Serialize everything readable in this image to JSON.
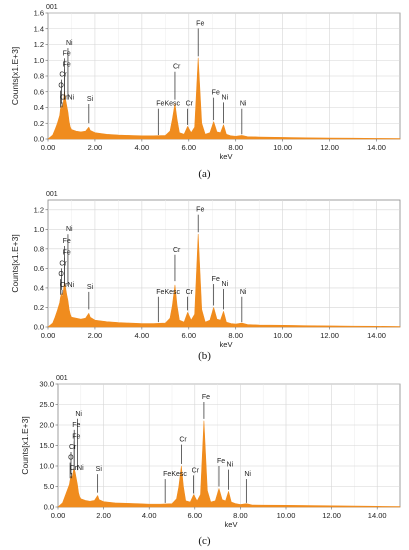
{
  "chart_data": [
    {
      "type": "area",
      "code_label": "001",
      "caption": "(a)",
      "xlabel": "keV",
      "ylabel": "Counts[x1.E+3]",
      "xlim": [
        0,
        15
      ],
      "ylim": [
        0,
        1.6
      ],
      "x_ticks": [
        0,
        2,
        4,
        6,
        8,
        10,
        12,
        14
      ],
      "x_tick_labels": [
        "0.00",
        "2.00",
        "4.00",
        "6.00",
        "8.00",
        "10.00",
        "12.00",
        "14.00"
      ],
      "y_ticks": [
        0,
        0.2,
        0.4,
        0.6,
        0.8,
        1.0,
        1.2,
        1.4,
        1.6
      ],
      "y_tick_labels": [
        "0.0",
        "0.2",
        "0.4",
        "0.6",
        "0.8",
        "1.0",
        "1.2",
        "1.4",
        "1.6"
      ],
      "grid": true,
      "color": "#f08c1e",
      "spectrum": {
        "x": [
          0.0,
          0.2,
          0.3,
          0.4,
          0.5,
          0.53,
          0.57,
          0.6,
          0.65,
          0.7,
          0.75,
          0.8,
          0.85,
          0.9,
          0.95,
          1.0,
          1.2,
          1.4,
          1.6,
          1.74,
          1.8,
          2.0,
          2.5,
          3.0,
          3.5,
          4.0,
          4.5,
          5.0,
          5.2,
          5.3,
          5.41,
          5.5,
          5.6,
          5.8,
          5.95,
          6.1,
          6.25,
          6.4,
          6.55,
          6.7,
          6.9,
          7.06,
          7.2,
          7.35,
          7.48,
          7.6,
          7.8,
          8.0,
          8.26,
          8.5,
          9.0,
          10.0,
          11.0,
          12.0,
          13.0,
          14.0,
          15.0
        ],
        "y": [
          0.0,
          0.05,
          0.12,
          0.2,
          0.3,
          0.38,
          0.42,
          0.36,
          0.45,
          0.6,
          0.5,
          0.42,
          0.34,
          0.22,
          0.15,
          0.12,
          0.1,
          0.09,
          0.1,
          0.15,
          0.11,
          0.08,
          0.06,
          0.05,
          0.045,
          0.04,
          0.04,
          0.045,
          0.1,
          0.25,
          0.45,
          0.25,
          0.08,
          0.06,
          0.16,
          0.08,
          0.15,
          1.03,
          0.2,
          0.06,
          0.08,
          0.22,
          0.09,
          0.08,
          0.18,
          0.06,
          0.04,
          0.035,
          0.045,
          0.03,
          0.025,
          0.02,
          0.015,
          0.012,
          0.01,
          0.008,
          0.006
        ]
      },
      "peak_labels": [
        {
          "text": "Ni",
          "x": 0.85,
          "y": 1.18,
          "line_x": 0.85,
          "line_top": 0.5
        },
        {
          "text": "Fe",
          "x": 0.71,
          "y": 1.05,
          "line_x": 0.71,
          "line_top": 0.5
        },
        {
          "text": "Fe",
          "x": 0.71,
          "y": 0.91,
          "line_x": 0.71,
          "line_top": 0.5
        },
        {
          "text": "Cr",
          "x": 0.57,
          "y": 0.78,
          "line_x": 0.57,
          "line_top": 0.45
        },
        {
          "text": "O",
          "x": 0.53,
          "y": 0.64,
          "line_x": 0.53,
          "line_top": 0.4
        },
        {
          "text": "CrNi",
          "x": 0.6,
          "y": 0.49,
          "line_x": 0.6,
          "line_top": 0.4
        },
        {
          "text": "Si",
          "x": 1.74,
          "y": 0.47,
          "line_x": 1.74,
          "line_top": 0.2
        },
        {
          "text": "FeKesc",
          "x": 4.7,
          "y": 0.41,
          "line_x": 4.7,
          "line_top": 0.05
        },
        {
          "text": "Cr",
          "x": 5.41,
          "y": 0.88,
          "line_x": 5.41,
          "line_top": 0.5
        },
        {
          "text": "Cr",
          "x": 5.95,
          "y": 0.41,
          "line_x": 5.95,
          "line_top": 0.18
        },
        {
          "text": "Fe",
          "x": 6.4,
          "y": 1.43,
          "line_x": 6.4,
          "line_top": 1.05
        },
        {
          "text": "Fe",
          "x": 7.06,
          "y": 0.55,
          "line_x": 7.06,
          "line_top": 0.24
        },
        {
          "text": "Ni",
          "x": 7.48,
          "y": 0.49,
          "line_x": 7.48,
          "line_top": 0.2
        },
        {
          "text": "Ni",
          "x": 8.26,
          "y": 0.41,
          "line_x": 8.26,
          "line_top": 0.06
        }
      ]
    },
    {
      "type": "area",
      "code_label": "001",
      "caption": "(b)",
      "xlabel": "keV",
      "ylabel": "Counts[x1.E+3]",
      "xlim": [
        0,
        15
      ],
      "ylim": [
        0,
        1.3
      ],
      "x_ticks": [
        0,
        2,
        4,
        6,
        8,
        10,
        12,
        14
      ],
      "x_tick_labels": [
        "0.00",
        "2.00",
        "4.00",
        "6.00",
        "8.00",
        "10.00",
        "12.00",
        "14.00"
      ],
      "y_ticks": [
        0,
        0.2,
        0.4,
        0.6,
        0.8,
        1.0,
        1.2
      ],
      "y_tick_labels": [
        "0.0",
        "0.2",
        "0.4",
        "0.6",
        "0.8",
        "1.0",
        "1.2"
      ],
      "grid": true,
      "color": "#f08c1e",
      "spectrum": {
        "x": [
          0.0,
          0.2,
          0.3,
          0.4,
          0.5,
          0.53,
          0.57,
          0.6,
          0.65,
          0.7,
          0.75,
          0.8,
          0.85,
          0.9,
          0.95,
          1.0,
          1.2,
          1.4,
          1.6,
          1.74,
          1.8,
          2.0,
          2.5,
          3.0,
          3.5,
          4.0,
          4.5,
          5.0,
          5.2,
          5.3,
          5.41,
          5.5,
          5.6,
          5.8,
          5.95,
          6.1,
          6.25,
          6.4,
          6.55,
          6.7,
          6.9,
          7.06,
          7.2,
          7.35,
          7.48,
          7.6,
          7.8,
          8.0,
          8.26,
          8.5,
          9.0,
          10.0,
          11.0,
          12.0,
          13.0,
          14.0,
          15.0
        ],
        "y": [
          0.0,
          0.04,
          0.1,
          0.17,
          0.25,
          0.3,
          0.34,
          0.3,
          0.36,
          0.46,
          0.4,
          0.33,
          0.27,
          0.18,
          0.13,
          0.1,
          0.09,
          0.08,
          0.09,
          0.14,
          0.1,
          0.07,
          0.055,
          0.045,
          0.04,
          0.035,
          0.035,
          0.04,
          0.09,
          0.22,
          0.43,
          0.22,
          0.07,
          0.05,
          0.15,
          0.07,
          0.13,
          0.95,
          0.18,
          0.05,
          0.07,
          0.2,
          0.08,
          0.07,
          0.16,
          0.05,
          0.035,
          0.03,
          0.04,
          0.025,
          0.02,
          0.018,
          0.014,
          0.011,
          0.009,
          0.007,
          0.005
        ]
      },
      "peak_labels": [
        {
          "text": "Ni",
          "x": 0.85,
          "y": 0.97,
          "line_x": 0.85,
          "line_top": 0.42
        },
        {
          "text": "Fe",
          "x": 0.71,
          "y": 0.85,
          "line_x": 0.71,
          "line_top": 0.42
        },
        {
          "text": "Fe",
          "x": 0.71,
          "y": 0.73,
          "line_x": 0.71,
          "line_top": 0.42
        },
        {
          "text": "Cr",
          "x": 0.57,
          "y": 0.62,
          "line_x": 0.57,
          "line_top": 0.38
        },
        {
          "text": "O",
          "x": 0.53,
          "y": 0.51,
          "line_x": 0.53,
          "line_top": 0.33
        },
        {
          "text": "CrNi",
          "x": 0.6,
          "y": 0.4,
          "line_x": 0.6,
          "line_top": 0.33
        },
        {
          "text": "Si",
          "x": 1.74,
          "y": 0.38,
          "line_x": 1.74,
          "line_top": 0.18
        },
        {
          "text": "FeKesc",
          "x": 4.7,
          "y": 0.33,
          "line_x": 4.7,
          "line_top": 0.05
        },
        {
          "text": "Cr",
          "x": 5.41,
          "y": 0.76,
          "line_x": 5.41,
          "line_top": 0.47
        },
        {
          "text": "Cr",
          "x": 5.95,
          "y": 0.33,
          "line_x": 5.95,
          "line_top": 0.17
        },
        {
          "text": "Fe",
          "x": 6.4,
          "y": 1.17,
          "line_x": 6.4,
          "line_top": 0.97
        },
        {
          "text": "Fe",
          "x": 7.06,
          "y": 0.46,
          "line_x": 7.06,
          "line_top": 0.22
        },
        {
          "text": "Ni",
          "x": 7.48,
          "y": 0.41,
          "line_x": 7.48,
          "line_top": 0.18
        },
        {
          "text": "Ni",
          "x": 8.26,
          "y": 0.33,
          "line_x": 8.26,
          "line_top": 0.05
        }
      ]
    },
    {
      "type": "area",
      "code_label": "001",
      "caption": "(c)",
      "xlabel": "keV",
      "ylabel": "Counts[x1.E+3]",
      "xlim": [
        0,
        15
      ],
      "ylim": [
        0,
        30
      ],
      "x_ticks": [
        0,
        2,
        4,
        6,
        8,
        10,
        12,
        14
      ],
      "x_tick_labels": [
        "0.00",
        "2.00",
        "4.00",
        "6.00",
        "8.00",
        "10.00",
        "12.00",
        "14.00"
      ],
      "y_ticks": [
        0,
        5,
        10,
        15,
        20,
        25,
        30
      ],
      "y_tick_labels": [
        "0.0",
        "5.0",
        "10.0",
        "15.0",
        "20.0",
        "25.0",
        "30.0"
      ],
      "grid": true,
      "color": "#f08c1e",
      "spectrum": {
        "x": [
          0.0,
          0.2,
          0.3,
          0.4,
          0.5,
          0.53,
          0.57,
          0.6,
          0.65,
          0.7,
          0.75,
          0.8,
          0.85,
          0.9,
          0.95,
          1.0,
          1.2,
          1.4,
          1.6,
          1.74,
          1.8,
          2.0,
          2.5,
          3.0,
          3.5,
          4.0,
          4.5,
          5.0,
          5.2,
          5.3,
          5.41,
          5.5,
          5.6,
          5.8,
          5.95,
          6.1,
          6.25,
          6.4,
          6.55,
          6.7,
          6.9,
          7.06,
          7.2,
          7.35,
          7.48,
          7.6,
          7.8,
          8.0,
          8.26,
          8.5,
          9.0,
          10.0,
          11.0,
          12.0,
          13.0,
          14.0,
          15.0
        ],
        "y": [
          0.0,
          1.0,
          2.5,
          4.0,
          5.5,
          6.5,
          7.5,
          6.5,
          8.0,
          9.5,
          8.5,
          7.0,
          5.5,
          3.5,
          2.5,
          2.0,
          1.6,
          1.4,
          1.6,
          2.8,
          1.8,
          1.3,
          1.0,
          0.9,
          0.8,
          0.7,
          0.7,
          0.8,
          2.0,
          5.0,
          10.0,
          5.0,
          1.5,
          1.2,
          3.0,
          1.5,
          3.0,
          21.0,
          4.0,
          1.2,
          1.5,
          4.5,
          1.8,
          1.5,
          3.8,
          1.2,
          0.8,
          0.6,
          0.8,
          0.5,
          0.45,
          0.4,
          0.35,
          0.28,
          0.22,
          0.16,
          0.1
        ]
      },
      "peak_labels": [
        {
          "text": "Ni",
          "x": 0.85,
          "y": 22.0,
          "line_x": 0.85,
          "line_top": 9.0
        },
        {
          "text": "Fe",
          "x": 0.71,
          "y": 19.3,
          "line_x": 0.71,
          "line_top": 9.0
        },
        {
          "text": "Fe",
          "x": 0.71,
          "y": 16.5,
          "line_x": 0.71,
          "line_top": 9.0
        },
        {
          "text": "Cr",
          "x": 0.57,
          "y": 13.9,
          "line_x": 0.57,
          "line_top": 8.0
        },
        {
          "text": "O",
          "x": 0.53,
          "y": 11.3,
          "line_x": 0.53,
          "line_top": 7.0
        },
        {
          "text": "CrNi",
          "x": 0.6,
          "y": 8.8,
          "line_x": 0.6,
          "line_top": 7.0
        },
        {
          "text": "Si",
          "x": 1.74,
          "y": 8.5,
          "line_x": 1.74,
          "line_top": 3.5
        },
        {
          "text": "FeKesc",
          "x": 4.7,
          "y": 7.3,
          "line_x": 4.7,
          "line_top": 1.0
        },
        {
          "text": "Cr",
          "x": 5.41,
          "y": 15.7,
          "line_x": 5.41,
          "line_top": 10.5
        },
        {
          "text": "Cr",
          "x": 5.95,
          "y": 8.2,
          "line_x": 5.95,
          "line_top": 3.3
        },
        {
          "text": "Fe",
          "x": 6.4,
          "y": 26.1,
          "line_x": 6.4,
          "line_top": 21.5
        },
        {
          "text": "Fe",
          "x": 7.06,
          "y": 10.5,
          "line_x": 7.06,
          "line_top": 5.0
        },
        {
          "text": "Ni",
          "x": 7.48,
          "y": 9.6,
          "line_x": 7.48,
          "line_top": 4.2
        },
        {
          "text": "Ni",
          "x": 8.26,
          "y": 7.3,
          "line_x": 8.26,
          "line_top": 1.0
        }
      ]
    }
  ]
}
